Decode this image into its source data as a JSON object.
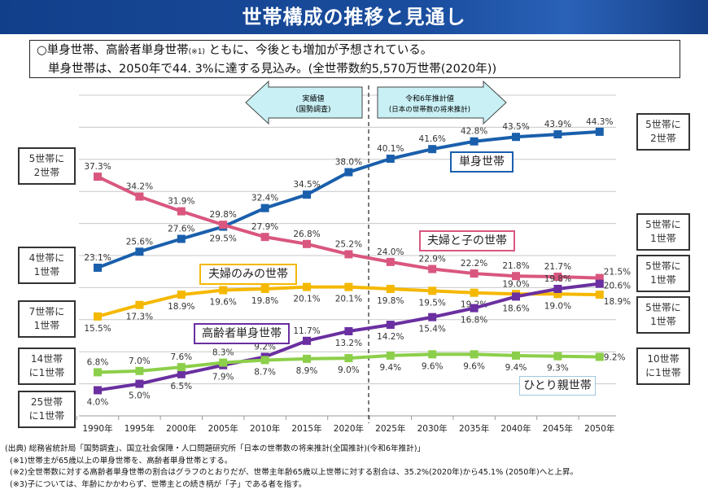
{
  "header": {
    "title": "世帯構成の推移と見通し"
  },
  "summary": {
    "line1_a": "○単身世帯、高齢者単身世帯",
    "line1_note": "(※1)",
    "line1_b": " ともに、今後とも増加が予想されている。",
    "line2": "単身世帯は、2050年で44. 3%に達する見込み。(全世帯数約5,570万世帯(2020年))"
  },
  "arrows": {
    "actual": {
      "line1": "実績値",
      "line2": "(国勢調査)"
    },
    "projection": {
      "line1": "令和6年推計値",
      "line2": "(日本の世帯数の将来推計)"
    }
  },
  "left_callouts": [
    {
      "text": "5世帯に\n2世帯",
      "color": "#d9577f"
    },
    {
      "text": "4世帯に\n1世帯",
      "color": "#1a5fac"
    },
    {
      "text": "7世帯に\n1世帯",
      "color": "#f5b800"
    },
    {
      "text": "14世帯\nに1世帯",
      "color": "#8ccf4a"
    },
    {
      "text": "25世帯\nに1世帯",
      "color": "#6a2fa0"
    }
  ],
  "right_callouts": [
    {
      "text": "5世帯に\n2世帯",
      "color": "#1a5fac"
    },
    {
      "text": "5世帯に\n1世帯",
      "color": "#d9577f"
    },
    {
      "text": "5世帯に\n1世帯",
      "color": "#6a2fa0"
    },
    {
      "text": "5世帯に\n1世帯",
      "color": "#f5b800"
    },
    {
      "text": "10世帯\nに1世帯",
      "color": "#8ccf4a"
    }
  ],
  "chart_data": {
    "type": "line",
    "title": "",
    "xlabel": "",
    "ylabel": "",
    "categories": [
      "1990年",
      "1995年",
      "2000年",
      "2005年",
      "2010年",
      "2015年",
      "2020年",
      "2025年",
      "2030年",
      "2035年",
      "2040年",
      "2045年",
      "2050年"
    ],
    "ylim": [
      0,
      50
    ],
    "y_grid_step": 5,
    "grid": true,
    "value_suffix": "%",
    "divider": "between 2020年 and 2025年 (actual vs projection)",
    "series": [
      {
        "name": "単身世帯",
        "color": "#1a5fac",
        "values": [
          23.1,
          25.6,
          27.6,
          29.5,
          32.4,
          34.5,
          38.0,
          40.1,
          41.6,
          42.8,
          43.5,
          43.9,
          44.3
        ]
      },
      {
        "name": "夫婦と子の世帯",
        "color": "#d9577f",
        "values": [
          37.3,
          34.2,
          31.9,
          29.8,
          27.9,
          26.8,
          25.2,
          24.0,
          22.9,
          22.2,
          21.8,
          21.7,
          21.5
        ]
      },
      {
        "name": "夫婦のみの世帯",
        "color": "#f5b800",
        "values": [
          15.5,
          17.3,
          18.9,
          19.6,
          19.8,
          20.1,
          20.1,
          19.8,
          19.5,
          19.2,
          19.0,
          19.0,
          18.9
        ]
      },
      {
        "name": "高齢者単身世帯",
        "color": "#6a2fa0",
        "values": [
          4.0,
          5.0,
          6.5,
          7.9,
          9.2,
          11.7,
          13.2,
          14.2,
          15.4,
          16.8,
          18.6,
          19.8,
          20.6
        ]
      },
      {
        "name": "ひとり親世帯",
        "color": "#8ccf4a",
        "values": [
          6.8,
          7.0,
          7.6,
          8.3,
          8.7,
          8.9,
          9.0,
          9.4,
          9.6,
          9.6,
          9.4,
          9.3,
          9.2
        ]
      }
    ]
  },
  "notes": {
    "source": "(出典) 総務省統計局「国勢調査」、国立社会保障・人口問題研究所「日本の世帯数の将来推計(全国推計)(令和6年推計)」",
    "note1": "(※1)世帯主が65歳以上の単身世帯を、高齢者単身世帯とする。",
    "note2": "(※2)全世帯数に対する高齢者単身世帯の割合はグラフのとおりだが、世帯主年齢65歳以上世帯に対する割合は、35.2%(2020年)から45.1% (2050年)へと上昇。",
    "note3": "(※3)子については、年齢にかかわらず、世帯主との続き柄が「子」である者を指す。"
  }
}
